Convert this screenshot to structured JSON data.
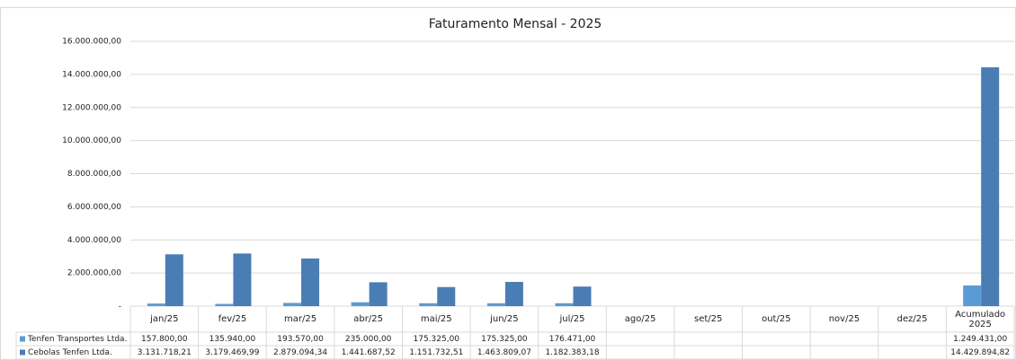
{
  "chart_data": {
    "type": "bar",
    "title": "Faturamento Mensal - 2025",
    "categories": [
      "jan/25",
      "fev/25",
      "mar/25",
      "abr/25",
      "mai/25",
      "jun/25",
      "jul/25",
      "ago/25",
      "set/25",
      "out/25",
      "nov/25",
      "dez/25",
      "Acumulado 2025"
    ],
    "series": [
      {
        "name": "Tenfen Transportes Ltda.",
        "color": "#5b9bd5",
        "values": [
          157800,
          135940,
          193570,
          235000,
          175325,
          175325,
          176471,
          null,
          null,
          null,
          null,
          null,
          1249431
        ],
        "value_labels": [
          "157.800,00",
          "135.940,00",
          "193.570,00",
          "235.000,00",
          "175.325,00",
          "175.325,00",
          "176.471,00",
          null,
          null,
          null,
          null,
          null,
          "1.249.431,00"
        ]
      },
      {
        "name": "Cebolas Tenfen Ltda.",
        "color": "#4a7db4",
        "values": [
          3131718.21,
          3179469.99,
          2879094.34,
          1441687.52,
          1151732.51,
          1463809.07,
          1182383.18,
          null,
          null,
          null,
          null,
          null,
          14429894.82
        ],
        "value_labels": [
          "3.131.718,21",
          "3.179.469,99",
          "2.879.094,34",
          "1.441.687,52",
          "1.151.732,51",
          "1.463.809,07",
          "1.182.383,18",
          null,
          null,
          null,
          null,
          null,
          "14.429.894,82"
        ]
      }
    ],
    "ylim": [
      0,
      16000000
    ],
    "yticks": [
      {
        "value": 0,
        "label": "-"
      },
      {
        "value": 2000000,
        "label": "2.000.000,00"
      },
      {
        "value": 4000000,
        "label": "4.000.000,00"
      },
      {
        "value": 6000000,
        "label": "6.000.000,00"
      },
      {
        "value": 8000000,
        "label": "8.000.000,00"
      },
      {
        "value": 10000000,
        "label": "10.000.000,00"
      },
      {
        "value": 12000000,
        "label": "12.000.000,00"
      },
      {
        "value": 14000000,
        "label": "14.000.000,00"
      },
      {
        "value": 16000000,
        "label": "16.000.000,00"
      }
    ],
    "grid": true
  }
}
